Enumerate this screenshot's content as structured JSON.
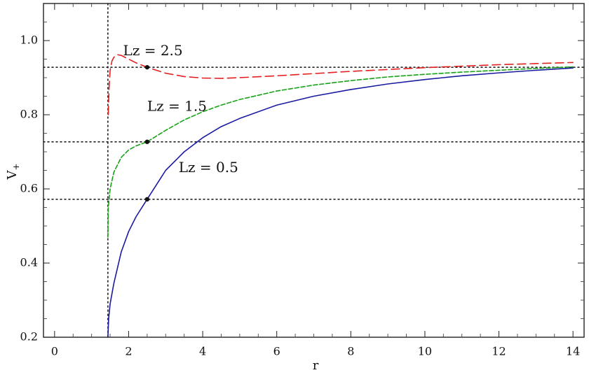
{
  "chart_data": {
    "type": "line",
    "xlabel": "r",
    "ylabel": "V",
    "ylabel_subscript": "+",
    "xlim": [
      -0.3,
      14.3
    ],
    "ylim": [
      0.2,
      1.1
    ],
    "xticks": [
      0,
      2,
      4,
      6,
      8,
      10,
      12,
      14
    ],
    "yticks": [
      0.2,
      0.4,
      0.6,
      0.8,
      1.0
    ],
    "xtick_labels": [
      "0",
      "2",
      "4",
      "6",
      "8",
      "10",
      "12",
      "14"
    ],
    "ytick_labels": [
      "0.2",
      "0.4",
      "0.6",
      "0.8",
      "1.0"
    ],
    "grid": false,
    "vertical_reference_line_x": 1.44,
    "horizontal_reference_lines_y": [
      0.928,
      0.727,
      0.572
    ],
    "series": [
      {
        "id": "lz25",
        "color": "#e32020",
        "dash": "dashed",
        "x": [
          1.45,
          1.47,
          1.5,
          1.55,
          1.6,
          1.7,
          1.8,
          1.9,
          2.0,
          2.2,
          2.5,
          3.0,
          3.5,
          4.0,
          4.5,
          5.0,
          6.0,
          7.0,
          8.0,
          9.0,
          10.0,
          11.0,
          12.0,
          13.0,
          14.0
        ],
        "y": [
          0.8,
          0.87,
          0.92,
          0.945,
          0.955,
          0.962,
          0.96,
          0.955,
          0.95,
          0.94,
          0.928,
          0.912,
          0.903,
          0.899,
          0.898,
          0.9,
          0.905,
          0.911,
          0.917,
          0.922,
          0.927,
          0.931,
          0.935,
          0.938,
          0.941
        ]
      },
      {
        "id": "lz15",
        "color": "#17a317",
        "dash": "dashed",
        "x": [
          1.44,
          1.45,
          1.5,
          1.6,
          1.8,
          2.0,
          2.2,
          2.5,
          3.0,
          3.5,
          4.0,
          4.5,
          5.0,
          6.0,
          7.0,
          8.0,
          9.0,
          10.0,
          11.0,
          12.0,
          13.0,
          14.0
        ],
        "y": [
          0.47,
          0.55,
          0.6,
          0.645,
          0.685,
          0.705,
          0.716,
          0.727,
          0.758,
          0.786,
          0.808,
          0.826,
          0.841,
          0.864,
          0.88,
          0.892,
          0.902,
          0.909,
          0.915,
          0.92,
          0.925,
          0.929
        ]
      },
      {
        "id": "lz05",
        "color": "#1a1aa0",
        "dash": "solid",
        "x": [
          1.44,
          1.46,
          1.5,
          1.6,
          1.8,
          2.0,
          2.2,
          2.5,
          3.0,
          3.5,
          4.0,
          4.5,
          5.0,
          6.0,
          7.0,
          8.0,
          9.0,
          10.0,
          11.0,
          12.0,
          13.0,
          14.0
        ],
        "y": [
          0.2,
          0.25,
          0.29,
          0.345,
          0.43,
          0.485,
          0.525,
          0.572,
          0.65,
          0.7,
          0.738,
          0.768,
          0.79,
          0.826,
          0.85,
          0.868,
          0.883,
          0.895,
          0.905,
          0.913,
          0.92,
          0.926
        ]
      }
    ],
    "marked_points": [
      {
        "x": 2.5,
        "y": 0.928
      },
      {
        "x": 2.5,
        "y": 0.727
      },
      {
        "x": 2.5,
        "y": 0.572
      }
    ],
    "annotations": [
      {
        "text": "Lz = 2.5",
        "x": 1.85,
        "y": 0.96
      },
      {
        "text": "Lz = 1.5",
        "x": 2.5,
        "y": 0.81
      },
      {
        "text": "Lz = 0.5",
        "x": 3.35,
        "y": 0.645
      }
    ]
  }
}
